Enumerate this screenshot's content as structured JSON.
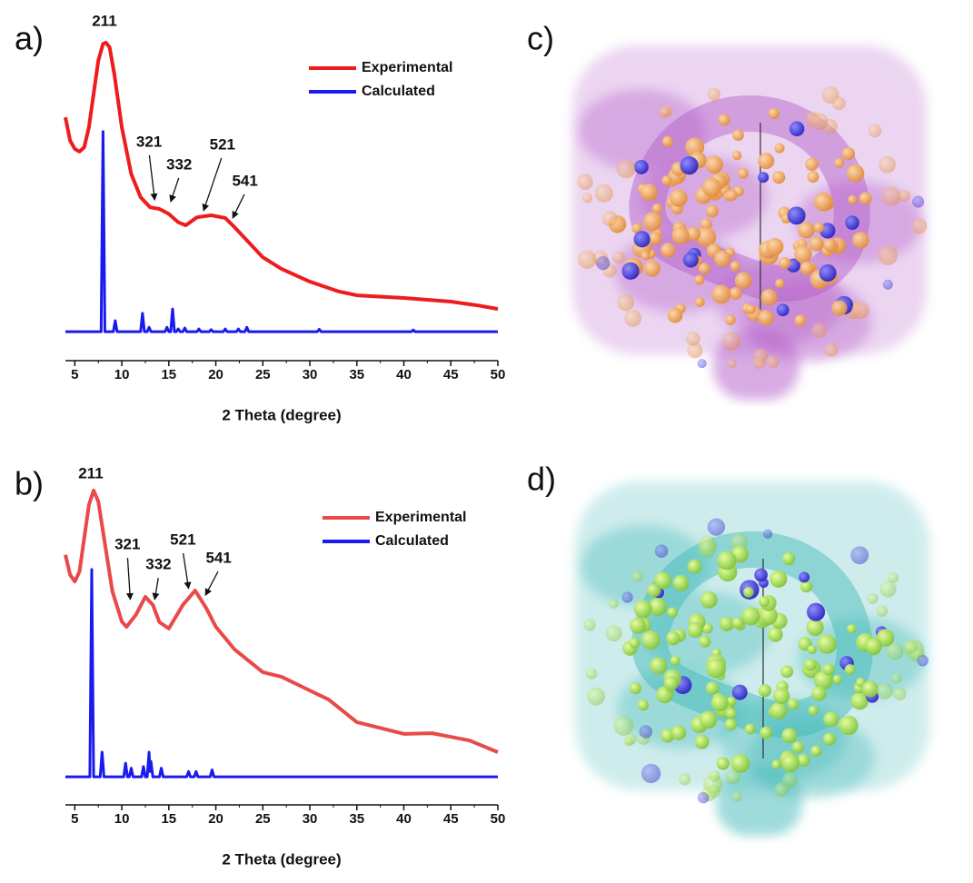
{
  "chart_data": [
    {
      "type": "line",
      "panel_label": "a)",
      "xlabel": "2 Theta (degree)",
      "xlim": [
        4,
        50
      ],
      "xticks": [
        5,
        10,
        15,
        20,
        25,
        30,
        35,
        40,
        45,
        50
      ],
      "ylim": [
        0,
        100
      ],
      "legend": "upper right",
      "series": [
        {
          "name": "Experimental",
          "color": "#ee1c1c",
          "x": [
            4,
            4.5,
            5,
            5.5,
            6,
            6.5,
            7,
            7.5,
            8,
            8.3,
            8.7,
            9.2,
            10,
            11,
            12,
            13,
            14,
            15,
            16,
            16.8,
            18,
            19.5,
            21,
            22,
            23,
            25,
            27,
            30,
            33,
            35,
            40,
            45,
            48,
            50
          ],
          "values": [
            73,
            66,
            63.5,
            62.7,
            64,
            70,
            80,
            90,
            95,
            95.4,
            94,
            86,
            70,
            56,
            49,
            46,
            45.5,
            44,
            41.5,
            40.6,
            43,
            43.6,
            42.8,
            40,
            37,
            31,
            27.5,
            23.7,
            20.8,
            19.6,
            18.8,
            17.7,
            16.5,
            15.5
          ]
        },
        {
          "name": "Calculated",
          "color": "#1a1aee",
          "x": [
            4,
            7.8,
            8.0,
            8.2,
            9.1,
            9.3,
            9.5,
            12.0,
            12.2,
            12.4,
            12.7,
            12.9,
            13.1,
            14.6,
            14.8,
            15.0,
            15.2,
            15.4,
            15.6,
            15.8,
            16.0,
            16.2,
            16.5,
            16.7,
            16.9,
            18.0,
            18.2,
            18.4,
            19.3,
            19.5,
            19.7,
            20.8,
            21.0,
            21.2,
            22.2,
            22.4,
            22.6,
            23.1,
            23.3,
            23.5,
            30.8,
            31.0,
            31.2,
            40.8,
            41.0,
            41.2,
            50
          ],
          "values": [
            8.7,
            8.7,
            68.7,
            8.7,
            8.7,
            12,
            8.7,
            8.7,
            14.2,
            8.7,
            8.7,
            10,
            8.7,
            8.7,
            10,
            8.7,
            8.7,
            15.5,
            8.7,
            8.7,
            9.5,
            8.7,
            8.7,
            9.8,
            8.7,
            8.7,
            9.5,
            8.7,
            8.7,
            9.3,
            8.7,
            8.7,
            9.5,
            8.7,
            8.7,
            9.5,
            8.7,
            8.7,
            10,
            8.7,
            8.7,
            9.4,
            8.7,
            8.7,
            9.2,
            8.7,
            8.7
          ]
        }
      ],
      "annotations": [
        {
          "text": "211",
          "text_x": 8.15,
          "text_y": 101.6
        },
        {
          "text": "321",
          "text_x": 12.9,
          "text_y": 65.4,
          "x": 13.5,
          "y": 48.2
        },
        {
          "text": "332",
          "text_x": 16.1,
          "text_y": 58.6,
          "x": 15.2,
          "y": 47.7
        },
        {
          "text": "521",
          "text_x": 20.7,
          "text_y": 64.6,
          "x": 18.7,
          "y": 45
        },
        {
          "text": "541",
          "text_x": 23.1,
          "text_y": 53.7,
          "x": 21.8,
          "y": 42.8
        }
      ]
    },
    {
      "type": "line",
      "panel_label": "b)",
      "xlabel": "2 Theta (degree)",
      "xlim": [
        4,
        50
      ],
      "xticks": [
        5,
        10,
        15,
        20,
        25,
        30,
        35,
        40,
        45,
        50
      ],
      "ylim": [
        0,
        100
      ],
      "legend": "upper right",
      "series": [
        {
          "name": "Experimental",
          "color": "#e84a4a",
          "x": [
            4,
            4.5,
            5,
            5.5,
            6,
            6.5,
            7,
            7.5,
            8,
            9,
            10,
            10.5,
            11.5,
            12.5,
            13.3,
            14,
            15,
            16.5,
            17.8,
            19,
            20,
            22,
            25,
            27,
            30,
            32,
            35,
            40,
            43,
            47,
            50
          ],
          "values": [
            75,
            69,
            67,
            70,
            80,
            90,
            94.3,
            91,
            82,
            64,
            55,
            53.4,
            57,
            62.4,
            60,
            54.8,
            52.9,
            60,
            64.3,
            58.9,
            53.4,
            46.6,
            39.8,
            38.4,
            34.3,
            31.6,
            24.8,
            21.3,
            21.5,
            19.3,
            15.8
          ]
        },
        {
          "name": "Calculated",
          "color": "#1a1aee",
          "x": [
            4,
            6.6,
            6.8,
            7.0,
            7.7,
            7.9,
            8.1,
            10.2,
            10.4,
            10.6,
            10.8,
            11.0,
            11.2,
            12.1,
            12.3,
            12.5,
            12.7,
            12.9,
            13.0,
            13.1,
            13.3,
            14.0,
            14.2,
            14.4,
            16.9,
            17.1,
            17.3,
            17.7,
            17.9,
            18.1,
            19.4,
            19.6,
            19.8,
            50
          ],
          "values": [
            8.4,
            8.4,
            70.6,
            8.4,
            8.4,
            15.8,
            8.4,
            8.4,
            12.5,
            8.4,
            8.4,
            11,
            8.4,
            8.4,
            11.5,
            8.4,
            8.4,
            15.8,
            10,
            13,
            8.4,
            8.4,
            11,
            8.4,
            8.4,
            10,
            8.4,
            8.4,
            10,
            8.4,
            8.4,
            10.5,
            8.4,
            8.4
          ]
        }
      ],
      "annotations": [
        {
          "text": "211",
          "text_x": 6.7,
          "text_y": 99.2
        },
        {
          "text": "321",
          "text_x": 10.6,
          "text_y": 77.9,
          "x": 10.9,
          "y": 61.6
        },
        {
          "text": "332",
          "text_x": 13.9,
          "text_y": 71.9,
          "x": 13.5,
          "y": 61.6
        },
        {
          "text": "521",
          "text_x": 16.5,
          "text_y": 79.3,
          "x": 17.1,
          "y": 64.9
        },
        {
          "text": "541",
          "text_x": 20.3,
          "text_y": 73.8,
          "x": 18.9,
          "y": 62.9
        }
      ]
    }
  ],
  "images": [
    {
      "label": "c)"
    },
    {
      "label": "d)"
    }
  ]
}
